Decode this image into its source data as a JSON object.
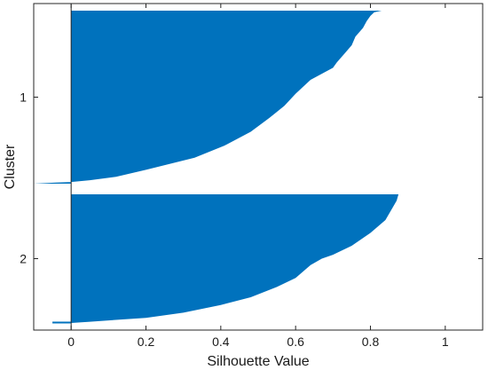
{
  "chart_data": {
    "type": "area",
    "xlabel": "Silhouette Value",
    "ylabel": "Cluster",
    "xlim": [
      -0.1,
      1.1
    ],
    "x_ticks": [
      "0",
      "0.2",
      "0.4",
      "0.6",
      "0.8",
      "1"
    ],
    "x_tick_values": [
      0,
      0.2,
      0.4,
      0.6,
      0.8,
      1
    ],
    "categories": [
      "1",
      "2"
    ],
    "grid": false,
    "fill_color": "#0072bd",
    "clusters": [
      {
        "name": "1",
        "profile": [
          [
            0.0,
            0.83
          ],
          [
            0.01,
            0.81
          ],
          [
            0.03,
            0.8
          ],
          [
            0.06,
            0.79
          ],
          [
            0.1,
            0.78
          ],
          [
            0.15,
            0.76
          ],
          [
            0.2,
            0.75
          ],
          [
            0.25,
            0.73
          ],
          [
            0.3,
            0.71
          ],
          [
            0.33,
            0.7
          ],
          [
            0.4,
            0.64
          ],
          [
            0.48,
            0.6
          ],
          [
            0.55,
            0.57
          ],
          [
            0.62,
            0.53
          ],
          [
            0.7,
            0.48
          ],
          [
            0.78,
            0.41
          ],
          [
            0.85,
            0.33
          ],
          [
            0.92,
            0.2
          ],
          [
            0.96,
            0.12
          ],
          [
            0.98,
            0.05
          ],
          [
            0.99,
            0.0
          ],
          [
            0.994,
            -0.04
          ],
          [
            1.0,
            -0.1
          ]
        ]
      },
      {
        "name": "2",
        "profile": [
          [
            0.0,
            0.875
          ],
          [
            0.05,
            0.87
          ],
          [
            0.1,
            0.86
          ],
          [
            0.15,
            0.85
          ],
          [
            0.2,
            0.84
          ],
          [
            0.3,
            0.8
          ],
          [
            0.4,
            0.75
          ],
          [
            0.47,
            0.7
          ],
          [
            0.5,
            0.67
          ],
          [
            0.55,
            0.64
          ],
          [
            0.6,
            0.62
          ],
          [
            0.65,
            0.6
          ],
          [
            0.72,
            0.55
          ],
          [
            0.8,
            0.48
          ],
          [
            0.86,
            0.4
          ],
          [
            0.92,
            0.3
          ],
          [
            0.96,
            0.2
          ],
          [
            0.99,
            0.05
          ],
          [
            1.0,
            0.0
          ]
        ],
        "negative_tail": -0.05
      }
    ]
  }
}
